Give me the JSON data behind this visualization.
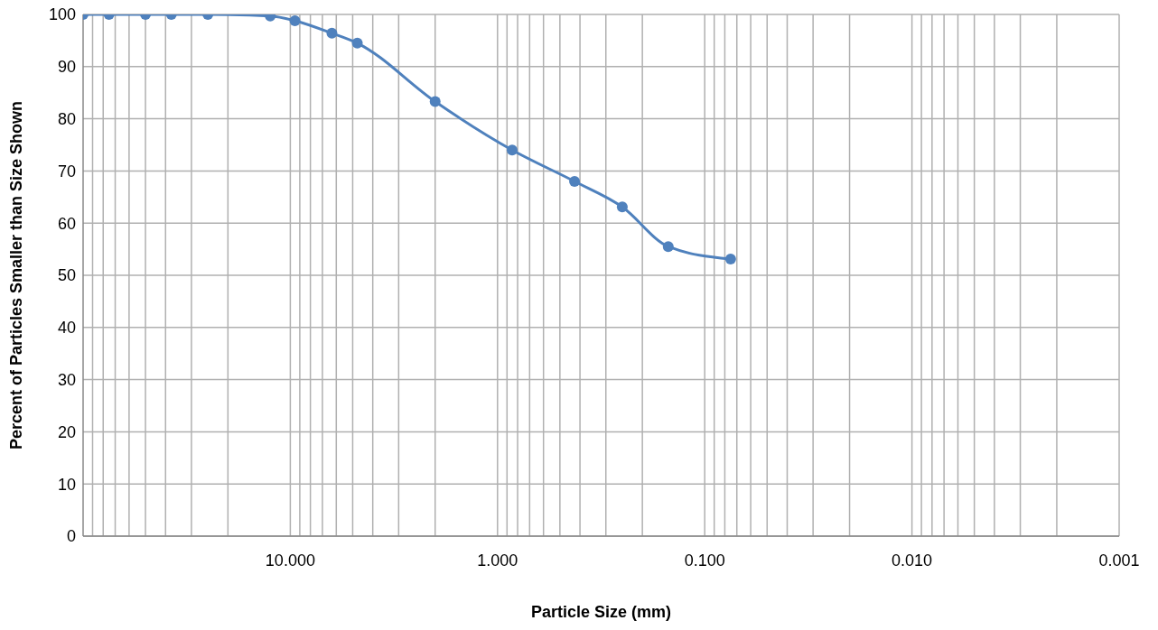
{
  "chart_data": {
    "type": "line",
    "xlabel": "Particle Size  (mm)",
    "ylabel": "Percent of Particles Smaller than Size Shown",
    "log": "x",
    "grid": true,
    "marker": "circle",
    "line_style": "solid",
    "xlim": [
      100,
      0.001
    ],
    "xticks": [
      {
        "value": 10,
        "label": "10.000"
      },
      {
        "value": 1,
        "label": "1.000"
      },
      {
        "value": 0.1,
        "label": "0.100"
      },
      {
        "value": 0.01,
        "label": "0.010"
      },
      {
        "value": 0.001,
        "label": "0.001"
      }
    ],
    "ylim": [
      0,
      100
    ],
    "yticks": [
      0,
      10,
      20,
      30,
      40,
      50,
      60,
      70,
      80,
      90,
      100
    ],
    "x": [
      100,
      75,
      50,
      37.5,
      25,
      12.5,
      9.5,
      6.3,
      4.75,
      2.0,
      0.85,
      0.425,
      0.25,
      0.15,
      0.075
    ],
    "series": [
      {
        "color": "#4f81bd",
        "values": [
          100,
          100,
          100,
          100,
          100,
          99.7,
          98.8,
          96.4,
          94.5,
          83.3,
          74.0,
          68.0,
          63.1,
          55.5,
          53.1
        ]
      }
    ]
  }
}
